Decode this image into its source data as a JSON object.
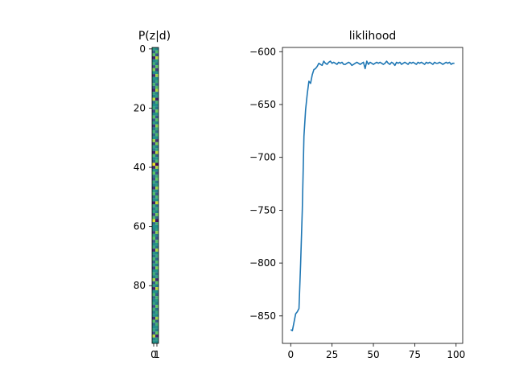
{
  "chart_data": [
    {
      "type": "heatmap",
      "title": "P(z|d)",
      "colormap": "viridis",
      "rows": 100,
      "columns": 2,
      "x_ticks": [
        "0",
        "1"
      ],
      "y_ticks": [
        "0",
        "20",
        "40",
        "60",
        "80"
      ],
      "ylim": [
        0,
        100
      ],
      "probabilities_col0": [
        0.55,
        0.3,
        0.72,
        0.1,
        0.45,
        0.62,
        0.25,
        0.8,
        0.48,
        0.15,
        0.52,
        0.4,
        0.66,
        0.3,
        0.12,
        0.58,
        0.44,
        0.9,
        0.35,
        0.5,
        0.6,
        0.22,
        0.47,
        0.7,
        0.28,
        0.55,
        0.18,
        0.4,
        0.63,
        0.33,
        0.5,
        0.85,
        0.2,
        0.57,
        0.42,
        0.1,
        0.68,
        0.46,
        0.3,
        0.98,
        0.12,
        0.52,
        0.74,
        0.38,
        0.25,
        0.6,
        0.45,
        0.15,
        0.55,
        0.7,
        0.32,
        0.48,
        0.08,
        0.62,
        0.4,
        0.56,
        0.22,
        0.66,
        0.95,
        0.35,
        0.5,
        0.44,
        0.18,
        0.58,
        0.73,
        0.28,
        0.47,
        0.6,
        0.12,
        0.53,
        0.38,
        0.65,
        0.3,
        0.55,
        0.2,
        0.48,
        0.62,
        0.42,
        0.86,
        0.27,
        0.56,
        0.1,
        0.5,
        0.68,
        0.34,
        0.45,
        0.58,
        0.24,
        0.62,
        0.4,
        0.52,
        0.15,
        0.7,
        0.36,
        0.48,
        0.58,
        0.25,
        0.88,
        0.44,
        0.52
      ]
    },
    {
      "type": "line",
      "title": "liklihood",
      "x_ticks": [
        "0",
        "25",
        "50",
        "75",
        "100"
      ],
      "y_ticks": [
        "−600",
        "−650",
        "−700",
        "−750",
        "−800",
        "−850"
      ],
      "xlim": [
        -5,
        104
      ],
      "ylim": [
        -876,
        -596
      ],
      "grid": false,
      "color": "#1f77b4",
      "x": [
        0,
        1,
        2,
        3,
        4,
        5,
        6,
        7,
        8,
        9,
        10,
        11,
        12,
        13,
        14,
        15,
        16,
        17,
        18,
        19,
        20,
        21,
        22,
        23,
        24,
        25,
        26,
        27,
        28,
        29,
        30,
        31,
        32,
        33,
        34,
        35,
        36,
        37,
        38,
        39,
        40,
        41,
        42,
        43,
        44,
        45,
        46,
        47,
        48,
        49,
        50,
        51,
        52,
        53,
        54,
        55,
        56,
        57,
        58,
        59,
        60,
        61,
        62,
        63,
        64,
        65,
        66,
        67,
        68,
        69,
        70,
        71,
        72,
        73,
        74,
        75,
        76,
        77,
        78,
        79,
        80,
        81,
        82,
        83,
        84,
        85,
        86,
        87,
        88,
        89,
        90,
        91,
        92,
        93,
        94,
        95,
        96,
        97,
        98,
        99
      ],
      "y": [
        -863,
        -864,
        -856,
        -848,
        -846,
        -843,
        -800,
        -750,
        -680,
        -655,
        -640,
        -628,
        -630,
        -622,
        -617,
        -616,
        -614,
        -611,
        -612,
        -613,
        -609,
        -611,
        -612,
        -610,
        -609,
        -611,
        -610,
        -611,
        -612,
        -610,
        -611,
        -610,
        -612,
        -612,
        -611,
        -610,
        -611,
        -613,
        -612,
        -611,
        -610,
        -611,
        -612,
        -611,
        -610,
        -616,
        -609,
        -612,
        -610,
        -611,
        -612,
        -611,
        -610,
        -611,
        -610,
        -611,
        -612,
        -611,
        -609,
        -611,
        -612,
        -610,
        -611,
        -613,
        -610,
        -611,
        -610,
        -612,
        -611,
        -610,
        -611,
        -612,
        -610,
        -611,
        -610,
        -611,
        -612,
        -610,
        -611,
        -610,
        -611,
        -612,
        -610,
        -611,
        -610,
        -611,
        -612,
        -610,
        -611,
        -611,
        -610,
        -611,
        -612,
        -611,
        -610,
        -611,
        -610,
        -612,
        -611,
        -611
      ]
    }
  ]
}
